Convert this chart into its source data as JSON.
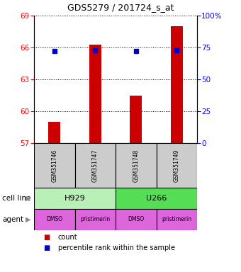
{
  "title": "GDS5279 / 201724_s_at",
  "samples": [
    "GSM351746",
    "GSM351747",
    "GSM351748",
    "GSM351749"
  ],
  "counts": [
    59.0,
    66.3,
    61.5,
    68.0
  ],
  "percentile_ranks": [
    72,
    73,
    72,
    73
  ],
  "ylim": [
    57,
    69
  ],
  "yticks": [
    57,
    60,
    63,
    66,
    69
  ],
  "right_yticks": [
    0,
    25,
    50,
    75,
    100
  ],
  "right_ylim": [
    0,
    100
  ],
  "cell_lines": [
    [
      "H929",
      2
    ],
    [
      "U266",
      2
    ]
  ],
  "cell_line_colors": [
    "#b8f0b8",
    "#55dd55"
  ],
  "agents": [
    "DMSO",
    "pristimerin",
    "DMSO",
    "pristimerin"
  ],
  "agent_color": "#dd66dd",
  "bar_color": "#cc0000",
  "dot_color": "#0000cc",
  "background_color": "#ffffff",
  "sample_box_color": "#cccccc",
  "fig_width": 3.4,
  "fig_height": 3.84,
  "dpi": 100
}
